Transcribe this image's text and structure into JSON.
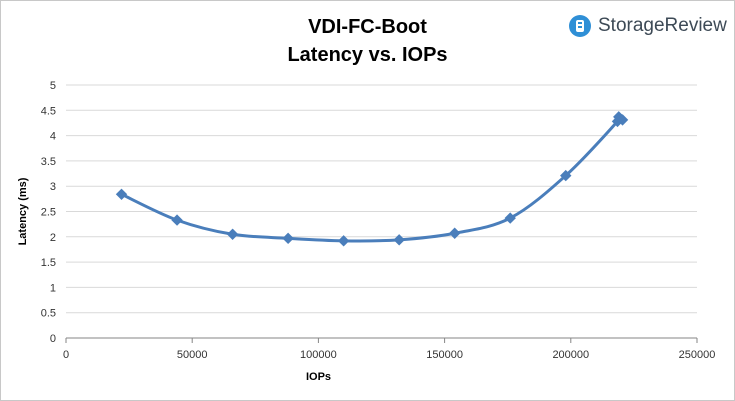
{
  "logo": {
    "text": "StorageReview"
  },
  "colors": {
    "series": "#4a7ebb",
    "grid": "#d9d9d9",
    "axis": "#868686",
    "logo_accent": "#2f8fd6"
  },
  "chart_data": {
    "type": "line",
    "title": "VDI-FC-Boot",
    "subtitle": "Latency vs. IOPs",
    "xlabel": "IOPs",
    "ylabel": "Latency (ms)",
    "xlim": [
      0,
      250000
    ],
    "ylim": [
      0,
      5
    ],
    "xticks": [
      0,
      50000,
      100000,
      150000,
      200000,
      250000
    ],
    "yticks": [
      0,
      0.5,
      1,
      1.5,
      2,
      2.5,
      3,
      3.5,
      4,
      4.5,
      5
    ],
    "grid": true,
    "legend": "none",
    "smooth": true,
    "marker": "diamond",
    "series": [
      {
        "x": [
          22000,
          44000,
          66000,
          88000,
          110000,
          132000,
          154000,
          176000,
          198000,
          218500,
          219000,
          220500
        ],
        "y": [
          2.84,
          2.33,
          2.05,
          1.97,
          1.92,
          1.94,
          2.07,
          2.37,
          3.21,
          4.28,
          4.37,
          4.31
        ]
      }
    ]
  }
}
